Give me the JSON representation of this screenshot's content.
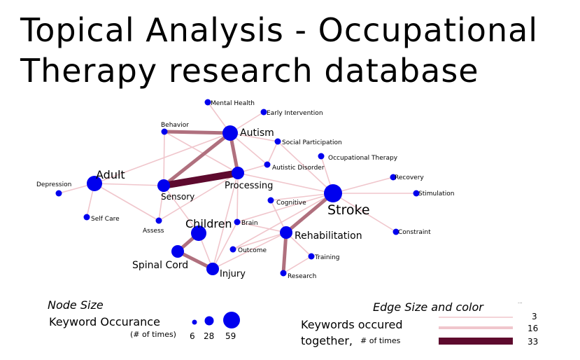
{
  "title_line1": "Topical Analysis - Occupational",
  "title_line2": "Therapy research database",
  "colors": {
    "node": "#0000ee",
    "edge_light": "#f0c6cc",
    "edge_mid": "#b0707e",
    "edge_heavy": "#5e0a2e",
    "label": "#000000"
  },
  "nodes": [
    {
      "id": "mental_health",
      "label": "Mental Health",
      "size": "small"
    },
    {
      "id": "early_intervention",
      "label": "Early Intervention",
      "size": "small"
    },
    {
      "id": "behavior",
      "label": "Behavior",
      "size": "small"
    },
    {
      "id": "autism",
      "label": "Autism",
      "size": "large"
    },
    {
      "id": "social_participation",
      "label": "Social Participation",
      "size": "small"
    },
    {
      "id": "occupational_therapy",
      "label": "Occupational Therapy",
      "size": "small"
    },
    {
      "id": "autistic_disorder",
      "label": "Autistic Disorder",
      "size": "small"
    },
    {
      "id": "adult",
      "label": "Adult",
      "size": "large"
    },
    {
      "id": "depression",
      "label": "Depression",
      "size": "small"
    },
    {
      "id": "sensory",
      "label": "Sensory",
      "size": "medium"
    },
    {
      "id": "processing",
      "label": "Processing",
      "size": "medium"
    },
    {
      "id": "recovery",
      "label": "Recovery",
      "size": "small"
    },
    {
      "id": "stimulation",
      "label": "Stimulation",
      "size": "small"
    },
    {
      "id": "stroke",
      "label": "Stroke",
      "size": "xlarge"
    },
    {
      "id": "cognitive",
      "label": "Cognitive",
      "size": "small"
    },
    {
      "id": "self_care",
      "label": "Self Care",
      "size": "small"
    },
    {
      "id": "assess",
      "label": "Assess",
      "size": "small"
    },
    {
      "id": "children",
      "label": "Children",
      "size": "large"
    },
    {
      "id": "brain",
      "label": "Brain",
      "size": "small"
    },
    {
      "id": "rehabilitation",
      "label": "Rehabilitation",
      "size": "medium"
    },
    {
      "id": "constraint",
      "label": "Constraint",
      "size": "small"
    },
    {
      "id": "outcome",
      "label": "Outcome",
      "size": "small"
    },
    {
      "id": "training",
      "label": "Training",
      "size": "small"
    },
    {
      "id": "spinal_cord",
      "label": "Spinal Cord",
      "size": "medium"
    },
    {
      "id": "injury",
      "label": "Injury",
      "size": "medium"
    },
    {
      "id": "research",
      "label": "Research",
      "size": "small"
    }
  ],
  "edges": [
    {
      "source": "sensory",
      "target": "processing",
      "weight": "heavy"
    },
    {
      "source": "sensory",
      "target": "autism",
      "weight": "mid"
    },
    {
      "source": "autism",
      "target": "processing",
      "weight": "mid"
    },
    {
      "source": "stroke",
      "target": "rehabilitation",
      "weight": "mid"
    },
    {
      "source": "spinal_cord",
      "target": "injury",
      "weight": "mid"
    },
    {
      "source": "children",
      "target": "spinal_cord",
      "weight": "mid"
    },
    {
      "source": "rehabilitation",
      "target": "research",
      "weight": "mid"
    },
    {
      "source": "behavior",
      "target": "autism",
      "weight": "mid"
    },
    {
      "source": "adult",
      "target": "sensory",
      "weight": "light"
    },
    {
      "source": "adult",
      "target": "depression",
      "weight": "light"
    },
    {
      "source": "adult",
      "target": "self_care",
      "weight": "light"
    },
    {
      "source": "adult",
      "target": "autism",
      "weight": "light"
    },
    {
      "source": "adult",
      "target": "assess",
      "weight": "light"
    },
    {
      "source": "behavior",
      "target": "sensory",
      "weight": "light"
    },
    {
      "source": "behavior",
      "target": "processing",
      "weight": "light"
    },
    {
      "source": "mental_health",
      "target": "autism",
      "weight": "light"
    },
    {
      "source": "early_intervention",
      "target": "autism",
      "weight": "light"
    },
    {
      "source": "autism",
      "target": "social_participation",
      "weight": "light"
    },
    {
      "source": "autism",
      "target": "autistic_disorder",
      "weight": "light"
    },
    {
      "source": "social_participation",
      "target": "stroke",
      "weight": "light"
    },
    {
      "source": "social_participation",
      "target": "autistic_disorder",
      "weight": "light"
    },
    {
      "source": "occupational_therapy",
      "target": "stroke",
      "weight": "light"
    },
    {
      "source": "autistic_disorder",
      "target": "processing",
      "weight": "light"
    },
    {
      "source": "processing",
      "target": "stroke",
      "weight": "light"
    },
    {
      "source": "processing",
      "target": "brain",
      "weight": "light"
    },
    {
      "source": "processing",
      "target": "injury",
      "weight": "light"
    },
    {
      "source": "sensory",
      "target": "assess",
      "weight": "light"
    },
    {
      "source": "sensory",
      "target": "children",
      "weight": "light"
    },
    {
      "source": "stroke",
      "target": "recovery",
      "weight": "light"
    },
    {
      "source": "stroke",
      "target": "stimulation",
      "weight": "light"
    },
    {
      "source": "stroke",
      "target": "constraint",
      "weight": "light"
    },
    {
      "source": "stroke",
      "target": "cognitive",
      "weight": "light"
    },
    {
      "source": "stroke",
      "target": "brain",
      "weight": "light"
    },
    {
      "source": "stroke",
      "target": "outcome",
      "weight": "light"
    },
    {
      "source": "cognitive",
      "target": "rehabilitation",
      "weight": "light"
    },
    {
      "source": "brain",
      "target": "rehabilitation",
      "weight": "light"
    },
    {
      "source": "brain",
      "target": "injury",
      "weight": "light"
    },
    {
      "source": "outcome",
      "target": "rehabilitation",
      "weight": "light"
    },
    {
      "source": "rehabilitation",
      "target": "training",
      "weight": "light"
    },
    {
      "source": "rehabilitation",
      "target": "injury",
      "weight": "light"
    },
    {
      "source": "training",
      "target": "research",
      "weight": "light"
    },
    {
      "source": "children",
      "target": "injury",
      "weight": "light"
    },
    {
      "source": "assess",
      "target": "processing",
      "weight": "light"
    }
  ],
  "legend_node": {
    "heading": "Node Size",
    "label": "Keyword Occurance",
    "sublabel": "(# of times)",
    "sizes": [
      "6",
      "28",
      "59"
    ]
  },
  "legend_edge": {
    "heading": "Edge Size and color",
    "heading_mark": "...",
    "label_line1": "Keywords occured",
    "label_line2": "together,",
    "sublabel": "# of times",
    "values": [
      "3",
      "16",
      "33"
    ]
  }
}
